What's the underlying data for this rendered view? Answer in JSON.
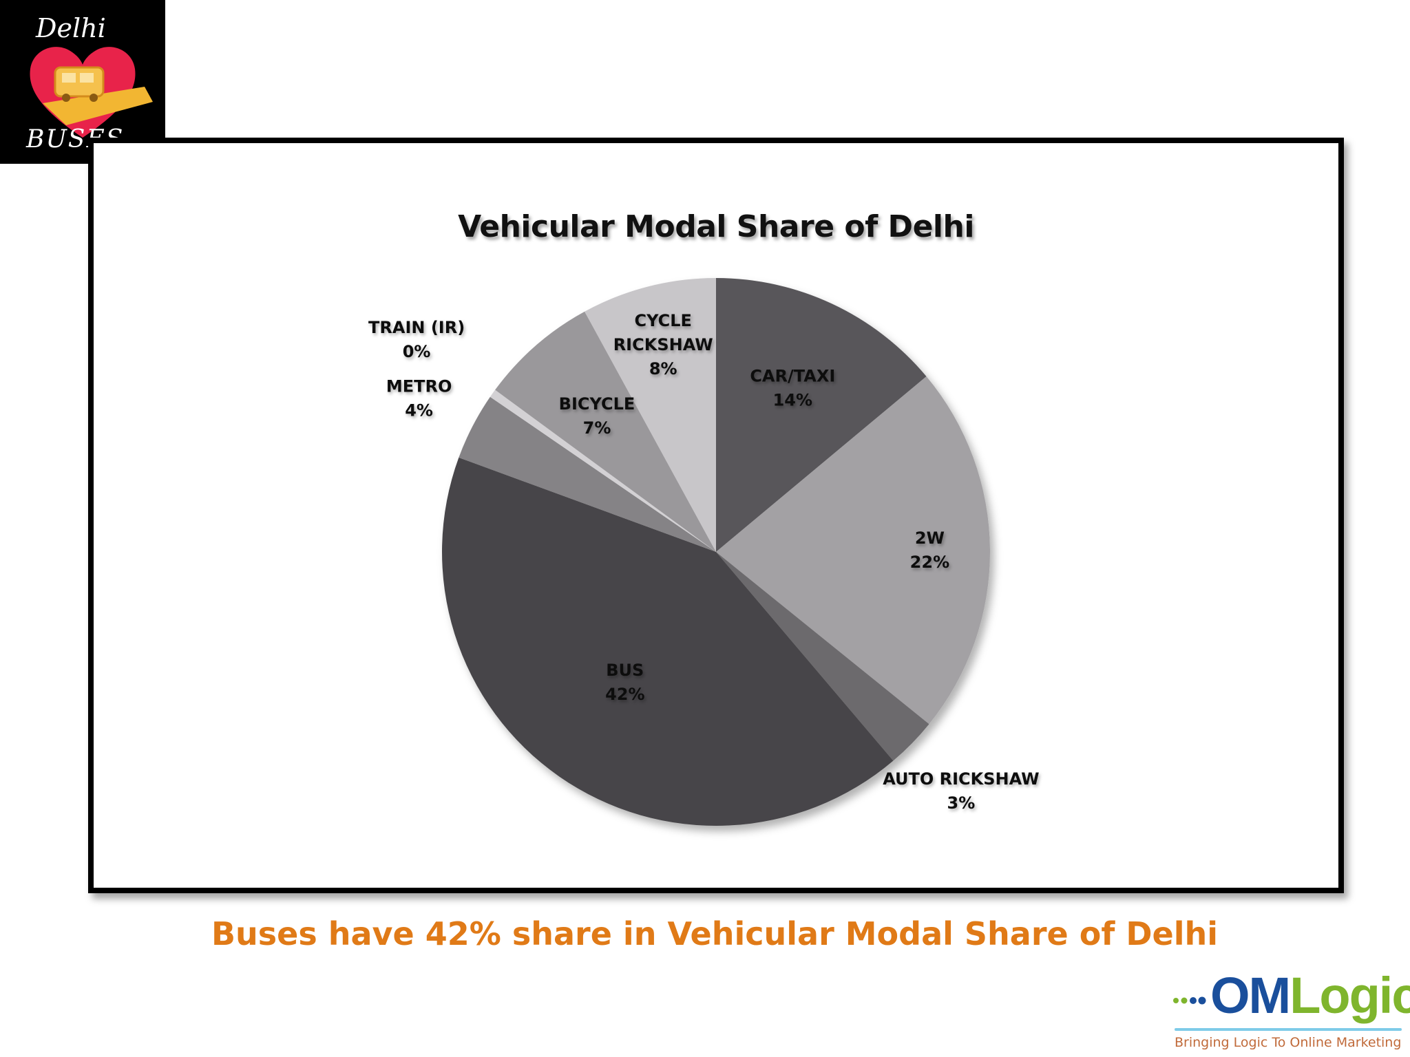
{
  "logo": {
    "line1": "Delhi",
    "line2": "BUSES",
    "icon": "heart-bus-icon"
  },
  "chart_data": {
    "type": "pie",
    "title": "Vehicular Modal Share of Delhi",
    "start_angle_deg": 0,
    "direction": "clockwise",
    "slices": [
      {
        "label": "CAR/TAXI",
        "display_value": "14%",
        "value": 14,
        "color": "#59575a"
      },
      {
        "label": "2W",
        "display_value": "22%",
        "value": 22,
        "color": "#a3a1a4"
      },
      {
        "label": "AUTO RICKSHAW",
        "display_value": "3%",
        "value": 3,
        "color": "#6c6a6d"
      },
      {
        "label": "BUS",
        "display_value": "42%",
        "value": 42,
        "color": "#474548"
      },
      {
        "label": "METRO",
        "display_value": "4%",
        "value": 4,
        "color": "#858386"
      },
      {
        "label": "TRAIN (IR)",
        "display_value": "0%",
        "value": 0.5,
        "color": "#d3d1d4"
      },
      {
        "label": "BICYCLE",
        "display_value": "7%",
        "value": 7,
        "color": "#9a989b"
      },
      {
        "label": "CYCLE RICKSHAW",
        "display_value": "8%",
        "value": 8,
        "color": "#c8c6c9"
      }
    ]
  },
  "caption": "Buses have 42% share in Vehicular Modal Share of Delhi",
  "brand": {
    "name_part1": "OM",
    "name_part2": "Logic",
    "tagline": "Bringing Logic To Online Marketing",
    "colors": {
      "om": "#1a4f9c",
      "logic": "#7fb52d",
      "tagline": "#c06a3a"
    }
  }
}
